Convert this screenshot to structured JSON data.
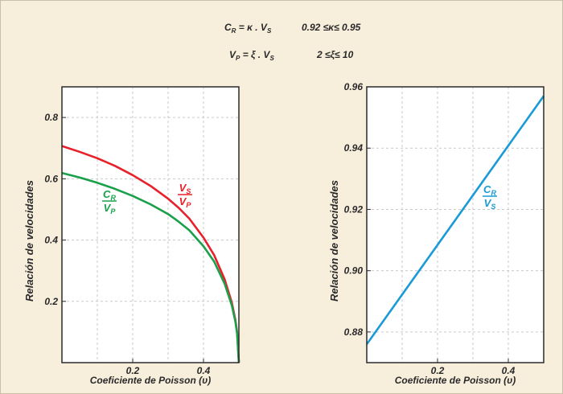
{
  "equations": {
    "line1": {
      "lhs_C": "C",
      "lhs_sub": "R",
      "mid": " = κ . V",
      "mid_sub": "S",
      "range": "0.92 ≤κ≤ 0.95"
    },
    "line2": {
      "lhs_V": "V",
      "lhs_sub": "P",
      "mid": " = ξ . V",
      "mid_sub": "S",
      "range": "2 ≤ξ≤ 10"
    }
  },
  "colors": {
    "red": "#e8202a",
    "green": "#1aa04b",
    "blue": "#1a9ad6",
    "frame": "#2a2a2a",
    "grid": "#c9c9c9",
    "plot_bg": "#ffffff"
  },
  "chart_data": [
    {
      "type": "line",
      "xlabel": "Coeficiente de Poisson (υ)",
      "ylabel": "Relación de velocidades",
      "xlim": [
        0,
        0.5
      ],
      "ylim": [
        0,
        0.9
      ],
      "xticks": [
        0.2,
        0.4
      ],
      "xtick_labels": [
        "0.2",
        "0.4"
      ],
      "yticks": [
        0.2,
        0.4,
        0.6,
        0.8
      ],
      "ytick_labels": [
        "0.2",
        "0.4",
        "0.6",
        "0.8"
      ],
      "grid": true,
      "series": [
        {
          "label_num": "V",
          "label_num_sub": "S",
          "label_den": "V",
          "label_den_sub": "P",
          "color": "#e8202a",
          "x": [
            0,
            0.05,
            0.1,
            0.15,
            0.2,
            0.25,
            0.3,
            0.33,
            0.36,
            0.4,
            0.43,
            0.46,
            0.48,
            0.49,
            0.495,
            0.5
          ],
          "y": [
            0.707,
            0.688,
            0.667,
            0.642,
            0.612,
            0.577,
            0.535,
            0.505,
            0.47,
            0.408,
            0.351,
            0.271,
            0.196,
            0.14,
            0.099,
            0.0
          ]
        },
        {
          "label_num": "C",
          "label_num_sub": "R",
          "label_den": "V",
          "label_den_sub": "P",
          "color": "#1aa04b",
          "x": [
            0,
            0.05,
            0.1,
            0.15,
            0.2,
            0.25,
            0.3,
            0.33,
            0.36,
            0.4,
            0.43,
            0.46,
            0.48,
            0.49,
            0.495,
            0.5
          ],
          "y": [
            0.619,
            0.604,
            0.587,
            0.567,
            0.544,
            0.517,
            0.485,
            0.46,
            0.432,
            0.38,
            0.33,
            0.257,
            0.187,
            0.135,
            0.095,
            0.0
          ]
        }
      ]
    },
    {
      "type": "line",
      "xlabel": "Coeficiente de Poisson (υ)",
      "ylabel": "Relación de velocidades",
      "xlim": [
        0,
        0.5
      ],
      "ylim": [
        0.87,
        0.96
      ],
      "xticks": [
        0.2,
        0.4
      ],
      "xtick_labels": [
        "0.2",
        "0.4"
      ],
      "yticks": [
        0.88,
        0.9,
        0.92,
        0.94,
        0.96
      ],
      "ytick_labels": [
        "0.88",
        "0.90",
        "0.92",
        "0.94",
        "0.96"
      ],
      "grid": true,
      "series": [
        {
          "label_num": "C",
          "label_num_sub": "R",
          "label_den": "V",
          "label_den_sub": "S",
          "color": "#1a9ad6",
          "x": [
            0,
            0.5
          ],
          "y": [
            0.876,
            0.957
          ]
        }
      ]
    }
  ]
}
